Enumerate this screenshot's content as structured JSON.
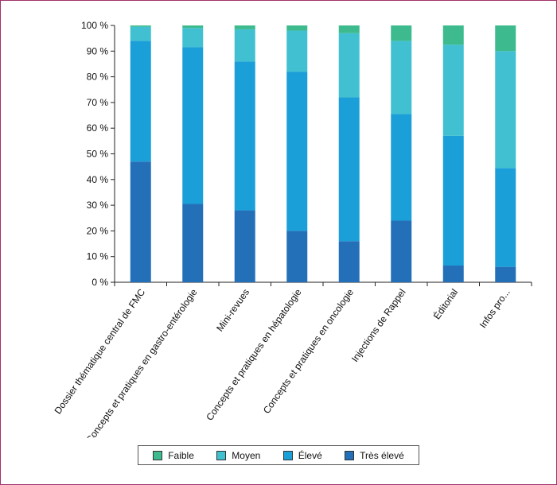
{
  "chart_data": {
    "type": "bar",
    "stacked": true,
    "categories": [
      "Dossier thématique central de FMC",
      "Concepts et pratiques en gastro-entérologie",
      "Mini-revues",
      "Concepts et pratiques en hépatologie",
      "Concepts et pratiques en oncologie",
      "Injections de Rappel",
      "Éditorial",
      "Infos pro..."
    ],
    "series": [
      {
        "name": "Très élevé",
        "color": "#2470b8",
        "values": [
          47,
          30.5,
          28,
          20,
          16,
          24,
          6.5,
          6
        ]
      },
      {
        "name": "Élevé",
        "color": "#1b9fd8",
        "values": [
          47,
          61,
          58,
          62,
          56,
          41.5,
          50.5,
          38.5
        ]
      },
      {
        "name": "Moyen",
        "color": "#40c0d0",
        "values": [
          5.5,
          7.5,
          12.5,
          16,
          25,
          28.5,
          35.5,
          45.5
        ]
      },
      {
        "name": "Faible",
        "color": "#3dbb8e",
        "values": [
          0.5,
          1,
          1.5,
          2,
          3,
          6,
          7.5,
          10
        ]
      }
    ],
    "yticks": [
      "0 %",
      "10 %",
      "20 %",
      "30 %",
      "40 %",
      "50 %",
      "60 %",
      "70 %",
      "80 %",
      "90 %",
      "100 %"
    ],
    "ylim": [
      0,
      100
    ],
    "title": "",
    "xlabel": "",
    "ylabel": "",
    "legend_position": "bottom",
    "grid": false
  },
  "legend": [
    {
      "label": "Faible",
      "color": "#3dbb8e"
    },
    {
      "label": "Moyen",
      "color": "#40c0d0"
    },
    {
      "label": "Élevé",
      "color": "#1b9fd8"
    },
    {
      "label": "Très élevé",
      "color": "#2470b8"
    }
  ]
}
